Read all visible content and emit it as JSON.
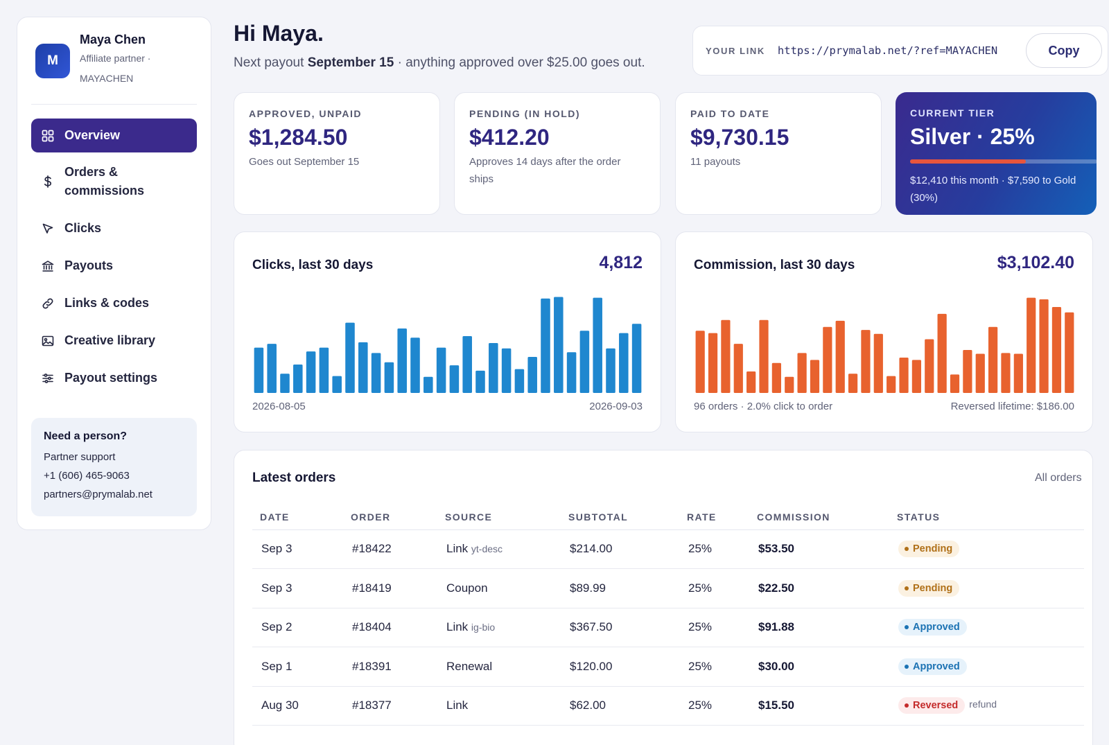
{
  "profile": {
    "initial": "M",
    "name": "Maya Chen",
    "role": "Affiliate partner ·",
    "code": "MAYACHEN"
  },
  "nav": [
    {
      "label": "Overview",
      "icon": "grid-icon",
      "active": true
    },
    {
      "label": "Orders & commissions",
      "icon": "dollar-icon",
      "active": false
    },
    {
      "label": "Clicks",
      "icon": "cursor-icon",
      "active": false
    },
    {
      "label": "Payouts",
      "icon": "bank-icon",
      "active": false
    },
    {
      "label": "Links & codes",
      "icon": "link-icon",
      "active": false
    },
    {
      "label": "Creative library",
      "icon": "image-icon",
      "active": false
    },
    {
      "label": "Payout settings",
      "icon": "sliders-icon",
      "active": false
    }
  ],
  "support": {
    "title": "Need a person?",
    "line1": "Partner support",
    "phone": "+1 (606) 465-9063",
    "email": "partners@prymalab.net"
  },
  "header": {
    "greeting": "Hi Maya.",
    "sub_prefix": "Next payout",
    "sub_date": "September 15",
    "sub_suffix": "· anything approved over $25.00 goes out."
  },
  "link": {
    "label": "YOUR LINK",
    "url": "https://prymalab.net/?ref=MAYACHEN",
    "copy_label": "Copy"
  },
  "stats": [
    {
      "label": "APPROVED, UNPAID",
      "value": "$1,284.50",
      "note": "Goes out September 15"
    },
    {
      "label": "PENDING (IN HOLD)",
      "value": "$412.20",
      "note": "Approves 14 days after the order ships"
    },
    {
      "label": "PAID TO DATE",
      "value": "$9,730.15",
      "note": "11 payouts"
    }
  ],
  "tier": {
    "label": "CURRENT TIER",
    "value": "Silver · 25%",
    "progress": 0.62,
    "note": "$12,410 this month · $7,590 to Gold (30%)"
  },
  "clicks_chart": {
    "title": "Clicks, last 30 days",
    "total": "4,812",
    "start_label": "2026-08-05",
    "end_label": "2026-09-03",
    "color": "#1f87cf"
  },
  "commission_chart": {
    "title": "Commission, last 30 days",
    "total": "$3,102.40",
    "foot_left": "96 orders · 2.0% click to order",
    "foot_right": "Reversed lifetime: $186.00",
    "color": "#e8622e"
  },
  "chart_data": [
    {
      "type": "bar",
      "title": "Clicks, last 30 days",
      "x_start": "2026-08-05",
      "x_end": "2026-09-03",
      "values": [
        118,
        128,
        50,
        74,
        108,
        118,
        44,
        183,
        132,
        104,
        80,
        168,
        144,
        42,
        118,
        72,
        148,
        58,
        130,
        116,
        62,
        94,
        246,
        250,
        106,
        162,
        248,
        116,
        156,
        180
      ],
      "ylim": [
        0,
        260
      ]
    },
    {
      "type": "bar",
      "title": "Commission, last 30 days",
      "values": [
        162,
        156,
        190,
        128,
        56,
        190,
        78,
        42,
        104,
        86,
        172,
        188,
        50,
        164,
        154,
        44,
        92,
        86,
        140,
        206,
        48,
        112,
        102,
        172,
        104,
        102,
        248,
        244,
        224,
        210
      ],
      "ylim": [
        0,
        260
      ]
    }
  ],
  "orders": {
    "title": "Latest orders",
    "all_link": "All orders",
    "columns": [
      "DATE",
      "ORDER",
      "SOURCE",
      "SUBTOTAL",
      "RATE",
      "COMMISSION",
      "STATUS"
    ],
    "rows": [
      {
        "date": "Sep 3",
        "order": "#18422",
        "source": "Link",
        "tag": "yt-desc",
        "subtotal": "$214.00",
        "rate": "25%",
        "commission": "$53.50",
        "status": "Pending",
        "kind": "pending",
        "note": ""
      },
      {
        "date": "Sep 3",
        "order": "#18419",
        "source": "Coupon",
        "tag": "",
        "subtotal": "$89.99",
        "rate": "25%",
        "commission": "$22.50",
        "status": "Pending",
        "kind": "pending",
        "note": ""
      },
      {
        "date": "Sep 2",
        "order": "#18404",
        "source": "Link",
        "tag": "ig-bio",
        "subtotal": "$367.50",
        "rate": "25%",
        "commission": "$91.88",
        "status": "Approved",
        "kind": "approved",
        "note": ""
      },
      {
        "date": "Sep 1",
        "order": "#18391",
        "source": "Renewal",
        "tag": "",
        "subtotal": "$120.00",
        "rate": "25%",
        "commission": "$30.00",
        "status": "Approved",
        "kind": "approved",
        "note": ""
      },
      {
        "date": "Aug 30",
        "order": "#18377",
        "source": "Link",
        "tag": "",
        "subtotal": "$62.00",
        "rate": "25%",
        "commission": "$15.50",
        "status": "Reversed",
        "kind": "reversed",
        "note": "refund"
      }
    ]
  }
}
